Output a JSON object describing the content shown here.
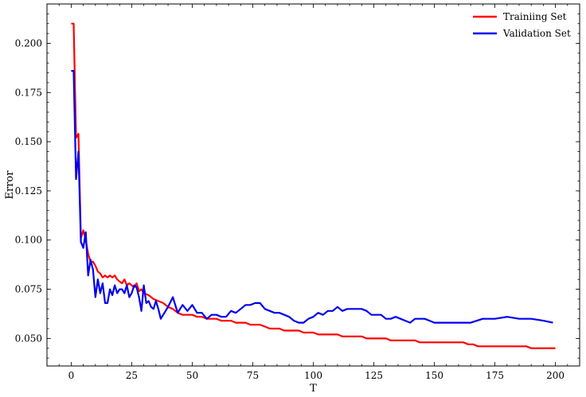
{
  "chart_data": {
    "type": "line",
    "title": "",
    "xlabel": "T",
    "ylabel": "Error",
    "xlim": [
      -10,
      210
    ],
    "ylim": [
      0.036,
      0.22
    ],
    "xticks": [
      0,
      25,
      50,
      75,
      100,
      125,
      150,
      175,
      200
    ],
    "yticks": [
      0.05,
      0.075,
      0.1,
      0.125,
      0.15,
      0.175,
      0.2
    ],
    "ytick_labels": [
      "0.050",
      "0.075",
      "0.100",
      "0.125",
      "0.150",
      "0.175",
      "0.200"
    ],
    "grid": false,
    "legend_position": "top-right",
    "series": [
      {
        "name": "Trainiing Set",
        "color": "#ff0000",
        "x": [
          0,
          1,
          2,
          3,
          4,
          5,
          6,
          7,
          8,
          9,
          10,
          11,
          12,
          13,
          14,
          15,
          16,
          17,
          18,
          19,
          20,
          21,
          22,
          23,
          24,
          25,
          26,
          27,
          28,
          29,
          30,
          32,
          34,
          36,
          38,
          40,
          42,
          44,
          46,
          48,
          50,
          52,
          54,
          56,
          58,
          60,
          62,
          64,
          66,
          68,
          70,
          72,
          74,
          76,
          78,
          80,
          82,
          84,
          86,
          88,
          90,
          92,
          94,
          96,
          98,
          100,
          102,
          104,
          106,
          108,
          110,
          112,
          114,
          116,
          118,
          120,
          122,
          124,
          126,
          128,
          130,
          132,
          134,
          136,
          138,
          140,
          142,
          144,
          146,
          148,
          150,
          152,
          154,
          156,
          158,
          160,
          162,
          164,
          166,
          168,
          170,
          172,
          174,
          176,
          178,
          180,
          182,
          184,
          186,
          188,
          190,
          192,
          194,
          196,
          198,
          200
        ],
        "values": [
          0.21,
          0.21,
          0.152,
          0.154,
          0.101,
          0.105,
          0.1,
          0.093,
          0.089,
          0.089,
          0.087,
          0.084,
          0.083,
          0.081,
          0.082,
          0.081,
          0.082,
          0.081,
          0.082,
          0.08,
          0.079,
          0.078,
          0.08,
          0.077,
          0.078,
          0.077,
          0.076,
          0.078,
          0.074,
          0.075,
          0.073,
          0.072,
          0.07,
          0.069,
          0.068,
          0.066,
          0.065,
          0.063,
          0.062,
          0.062,
          0.062,
          0.061,
          0.061,
          0.06,
          0.06,
          0.06,
          0.059,
          0.059,
          0.059,
          0.058,
          0.058,
          0.058,
          0.057,
          0.057,
          0.057,
          0.056,
          0.055,
          0.055,
          0.055,
          0.054,
          0.054,
          0.054,
          0.054,
          0.053,
          0.053,
          0.053,
          0.052,
          0.052,
          0.052,
          0.052,
          0.052,
          0.051,
          0.051,
          0.051,
          0.051,
          0.051,
          0.05,
          0.05,
          0.05,
          0.05,
          0.05,
          0.049,
          0.049,
          0.049,
          0.049,
          0.049,
          0.049,
          0.048,
          0.048,
          0.048,
          0.048,
          0.048,
          0.048,
          0.048,
          0.048,
          0.048,
          0.048,
          0.047,
          0.047,
          0.046,
          0.046,
          0.046,
          0.046,
          0.046,
          0.046,
          0.046,
          0.046,
          0.046,
          0.046,
          0.046,
          0.045,
          0.045,
          0.045,
          0.045,
          0.045,
          0.045
        ]
      },
      {
        "name": "Validation Set",
        "color": "#0000ee",
        "x": [
          0,
          1,
          2,
          3,
          4,
          5,
          6,
          7,
          8,
          9,
          10,
          11,
          12,
          13,
          14,
          15,
          16,
          17,
          18,
          19,
          20,
          21,
          22,
          23,
          24,
          25,
          26,
          27,
          28,
          29,
          30,
          31,
          32,
          33,
          34,
          35,
          36,
          37,
          38,
          39,
          40,
          42,
          44,
          46,
          48,
          50,
          52,
          54,
          56,
          58,
          60,
          62,
          64,
          66,
          68,
          70,
          72,
          74,
          76,
          78,
          80,
          82,
          84,
          86,
          88,
          90,
          92,
          94,
          96,
          98,
          100,
          102,
          104,
          106,
          108,
          110,
          112,
          114,
          116,
          118,
          120,
          122,
          124,
          126,
          128,
          130,
          132,
          134,
          136,
          138,
          140,
          142,
          144,
          146,
          148,
          150,
          155,
          160,
          165,
          170,
          175,
          180,
          185,
          190,
          195,
          199
        ],
        "values": [
          0.186,
          0.186,
          0.131,
          0.145,
          0.099,
          0.096,
          0.104,
          0.082,
          0.09,
          0.085,
          0.071,
          0.08,
          0.073,
          0.078,
          0.068,
          0.068,
          0.075,
          0.072,
          0.077,
          0.073,
          0.075,
          0.075,
          0.073,
          0.077,
          0.071,
          0.073,
          0.077,
          0.076,
          0.071,
          0.064,
          0.077,
          0.068,
          0.069,
          0.066,
          0.065,
          0.069,
          0.065,
          0.06,
          0.062,
          0.064,
          0.066,
          0.071,
          0.063,
          0.067,
          0.064,
          0.067,
          0.063,
          0.063,
          0.06,
          0.062,
          0.062,
          0.061,
          0.061,
          0.064,
          0.063,
          0.065,
          0.067,
          0.067,
          0.068,
          0.068,
          0.065,
          0.064,
          0.063,
          0.063,
          0.062,
          0.061,
          0.059,
          0.058,
          0.058,
          0.06,
          0.061,
          0.063,
          0.062,
          0.064,
          0.064,
          0.066,
          0.064,
          0.065,
          0.065,
          0.065,
          0.065,
          0.064,
          0.062,
          0.062,
          0.062,
          0.06,
          0.06,
          0.061,
          0.06,
          0.059,
          0.058,
          0.06,
          0.06,
          0.06,
          0.059,
          0.058,
          0.058,
          0.058,
          0.058,
          0.06,
          0.06,
          0.061,
          0.06,
          0.06,
          0.059,
          0.058
        ]
      }
    ]
  }
}
